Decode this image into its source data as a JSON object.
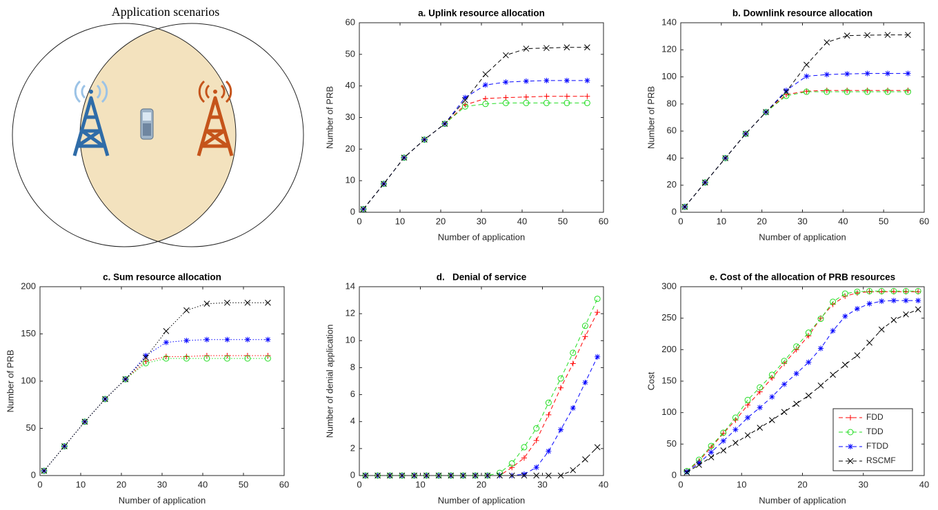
{
  "diagram": {
    "title": "Application scenarios"
  },
  "chart_data": [
    {
      "type": "line",
      "title": "a. Uplink resource allocation",
      "xlabel": "Number of application",
      "ylabel": "Number of PRB",
      "x": [
        1,
        6,
        11,
        16,
        21,
        26,
        31,
        36,
        41,
        46,
        51,
        56
      ],
      "xlim": [
        0,
        60
      ],
      "xticks": [
        0,
        10,
        20,
        30,
        40,
        50,
        60
      ],
      "ylim": [
        0,
        60
      ],
      "yticks": [
        0,
        10,
        20,
        30,
        40,
        50,
        60
      ],
      "line_style": "dashed",
      "series": [
        {
          "color": "#ff0000",
          "marker": "+",
          "values": [
            1,
            9,
            17.3,
            23,
            28,
            34,
            36,
            36.3,
            36.5,
            36.7,
            36.7,
            36.7
          ]
        },
        {
          "color": "#22dd22",
          "marker": "o",
          "values": [
            1,
            9,
            17.3,
            23,
            28,
            33.5,
            34.3,
            34.6,
            34.6,
            34.6,
            34.6,
            34.6
          ]
        },
        {
          "color": "#0000ff",
          "marker": "*",
          "values": [
            1,
            9,
            17.3,
            23,
            28,
            36.3,
            40.3,
            41.2,
            41.5,
            41.7,
            41.7,
            41.7
          ]
        },
        {
          "color": "#000000",
          "marker": "x",
          "values": [
            1,
            9,
            17.3,
            23,
            28,
            35.5,
            43.7,
            49.7,
            51.8,
            52,
            52.2,
            52.2
          ]
        }
      ]
    },
    {
      "type": "line",
      "title": "b. Downlink resource allocation",
      "xlabel": "Number of application",
      "ylabel": "Number of PRB",
      "x": [
        1,
        6,
        11,
        16,
        21,
        26,
        31,
        36,
        41,
        46,
        51,
        56
      ],
      "xlim": [
        0,
        60
      ],
      "xticks": [
        0,
        10,
        20,
        30,
        40,
        50,
        60
      ],
      "ylim": [
        0,
        140
      ],
      "yticks": [
        0,
        20,
        40,
        60,
        80,
        100,
        120,
        140
      ],
      "line_style": "dashed",
      "series": [
        {
          "color": "#ff0000",
          "marker": "+",
          "values": [
            4,
            22,
            40,
            58,
            74,
            87,
            89.5,
            90,
            90,
            90,
            90,
            90
          ]
        },
        {
          "color": "#22dd22",
          "marker": "o",
          "values": [
            4,
            22,
            40,
            58,
            74,
            86,
            89,
            89,
            89,
            89,
            89,
            89
          ]
        },
        {
          "color": "#0000ff",
          "marker": "*",
          "values": [
            4,
            22,
            40,
            58,
            74,
            90,
            100.5,
            101.7,
            102.2,
            102.5,
            102.5,
            102.5
          ]
        },
        {
          "color": "#000000",
          "marker": "x",
          "values": [
            4,
            22,
            40,
            58,
            74,
            89,
            109,
            125.5,
            130.5,
            130.8,
            131,
            131
          ]
        }
      ]
    },
    {
      "type": "line",
      "title": "c. Sum resource allocation",
      "xlabel": "Number of application",
      "ylabel": "Number of PRB",
      "x": [
        1,
        6,
        11,
        16,
        21,
        26,
        31,
        36,
        41,
        46,
        51,
        56
      ],
      "xlim": [
        0,
        60
      ],
      "xticks": [
        0,
        10,
        20,
        30,
        40,
        50,
        60
      ],
      "ylim": [
        0,
        200
      ],
      "yticks": [
        0,
        50,
        100,
        150,
        200
      ],
      "line_style": "dotted",
      "series": [
        {
          "color": "#ff0000",
          "marker": "+",
          "values": [
            5,
            31,
            57,
            81,
            102,
            121,
            126,
            126,
            127,
            127,
            127,
            127
          ]
        },
        {
          "color": "#22dd22",
          "marker": "o",
          "values": [
            5,
            31,
            57,
            81,
            102,
            119,
            124,
            124,
            124,
            124,
            124,
            124
          ]
        },
        {
          "color": "#0000ff",
          "marker": "*",
          "values": [
            5,
            31,
            57,
            81,
            102,
            127,
            141,
            143,
            144,
            144,
            144,
            144
          ]
        },
        {
          "color": "#000000",
          "marker": "x",
          "values": [
            5,
            31,
            57,
            81,
            102,
            125,
            153,
            175,
            182,
            183,
            183,
            183
          ]
        }
      ]
    },
    {
      "type": "line",
      "title": "d.   Denial of service",
      "xlabel": "Number of application",
      "ylabel": "Number of denial application",
      "x": [
        1,
        3,
        5,
        7,
        9,
        11,
        13,
        15,
        17,
        19,
        21,
        23,
        25,
        27,
        29,
        31,
        33,
        35,
        37,
        39
      ],
      "xlim": [
        0,
        40
      ],
      "xticks": [
        0,
        10,
        20,
        30,
        40
      ],
      "ylim": [
        0,
        14
      ],
      "yticks": [
        0,
        2,
        4,
        6,
        8,
        10,
        12,
        14
      ],
      "line_style": "dashed",
      "series": [
        {
          "color": "#ff0000",
          "marker": "+",
          "values": [
            0,
            0,
            0,
            0,
            0,
            0,
            0,
            0,
            0,
            0,
            0,
            0,
            0.6,
            1.3,
            2.6,
            4.5,
            6.5,
            8.3,
            10.3,
            12.1
          ]
        },
        {
          "color": "#22dd22",
          "marker": "o",
          "values": [
            0,
            0,
            0,
            0,
            0,
            0,
            0,
            0,
            0,
            0,
            0,
            0.2,
            0.9,
            2.1,
            3.5,
            5.4,
            7.2,
            9.1,
            11.1,
            13.1
          ]
        },
        {
          "color": "#0000ff",
          "marker": "*",
          "values": [
            0,
            0,
            0,
            0,
            0,
            0,
            0,
            0,
            0,
            0,
            0,
            0,
            0,
            0.1,
            0.6,
            1.8,
            3.4,
            5,
            6.9,
            8.8
          ]
        },
        {
          "color": "#000000",
          "marker": "x",
          "values": [
            0,
            0,
            0,
            0,
            0,
            0,
            0,
            0,
            0,
            0,
            0,
            0,
            0,
            0,
            0,
            0,
            0,
            0.4,
            1.2,
            2.1
          ]
        }
      ]
    },
    {
      "type": "line",
      "title": "e. Cost of the allocation of PRB resources",
      "xlabel": "Number of application",
      "ylabel": "Cost",
      "x": [
        1,
        3,
        5,
        7,
        9,
        11,
        13,
        15,
        17,
        19,
        21,
        23,
        25,
        27,
        29,
        31,
        33,
        35,
        37,
        39
      ],
      "xlim": [
        0,
        40
      ],
      "xticks": [
        0,
        10,
        20,
        30,
        40
      ],
      "ylim": [
        0,
        300
      ],
      "yticks": [
        0,
        50,
        100,
        150,
        200,
        250,
        300
      ],
      "line_style": "dashed",
      "legend": "lower right",
      "series": [
        {
          "name": "FDD",
          "color": "#ff0000",
          "marker": "+",
          "values": [
            7,
            23,
            45,
            67,
            88,
            112,
            133,
            155,
            178,
            200,
            222,
            250,
            272,
            285,
            290,
            292,
            292,
            292,
            292,
            292
          ]
        },
        {
          "name": "TDD",
          "color": "#22dd22",
          "marker": "o",
          "values": [
            7,
            25,
            47,
            68,
            92,
            120,
            140,
            160,
            182,
            205,
            227,
            249,
            276,
            289,
            292,
            293,
            293,
            293,
            293,
            293
          ]
        },
        {
          "name": "FTDD",
          "color": "#0000ff",
          "marker": "*",
          "values": [
            6,
            20,
            37,
            55,
            73,
            92,
            108,
            125,
            145,
            162,
            180,
            202,
            230,
            253,
            265,
            273,
            277,
            278,
            278,
            278
          ]
        },
        {
          "name": "RSCMF",
          "color": "#000000",
          "marker": "x",
          "values": [
            5,
            17,
            29,
            40,
            52,
            64,
            76,
            88,
            101,
            114,
            127,
            143,
            160,
            176,
            191,
            211,
            232,
            247,
            256,
            264
          ]
        }
      ]
    }
  ]
}
